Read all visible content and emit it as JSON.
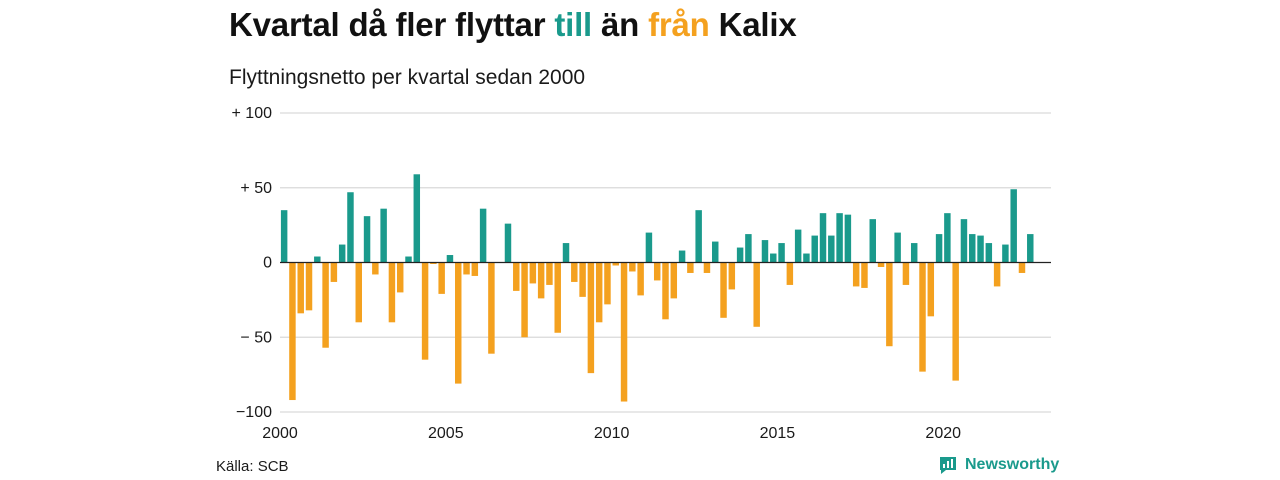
{
  "title": {
    "part1": "Kvartal då fler flyttar ",
    "till": "till",
    "part2": " än ",
    "fran": "från",
    "part3": " Kalix"
  },
  "subtitle": "Flyttningsnetto per kvartal sedan 2000",
  "source": "Källa: SCB",
  "brand": "Newsworthy",
  "icons": {
    "brand": "newsworthy-chart-icon"
  },
  "colors": {
    "positive": "#1a9a8c",
    "negative": "#f4a11f",
    "grid": "#d9d9d9",
    "zero": "#222222"
  },
  "chart_data": {
    "type": "bar",
    "title": "Kvartal då fler flyttar till än från Kalix",
    "subtitle": "Flyttningsnetto per kvartal sedan 2000",
    "ylim": [
      -100,
      100
    ],
    "y_ticks": [
      100,
      50,
      0,
      -50,
      -100
    ],
    "y_tick_labels": [
      "+ 100",
      "+  50",
      "0",
      "− 50",
      "−100"
    ],
    "x_ticks": [
      2000,
      2005,
      2010,
      2015,
      2020
    ],
    "x_tick_labels": [
      "2000",
      "2005",
      "2010",
      "2015",
      "2020"
    ],
    "xlim": [
      2000,
      2023.25
    ],
    "grid": "horizontal",
    "start_year": 2000,
    "quarters_per_year": 4,
    "values": [
      35,
      -92,
      -34,
      -32,
      4,
      -57,
      -13,
      12,
      47,
      -40,
      31,
      -8,
      36,
      -40,
      -20,
      4,
      59,
      -65,
      -1,
      -21,
      5,
      -81,
      -8,
      -9,
      36,
      -61,
      0,
      26,
      -19,
      -50,
      -14,
      -24,
      -15,
      -47,
      13,
      -13,
      -23,
      -74,
      -40,
      -28,
      -2,
      -93,
      -6,
      -22,
      20,
      -12,
      -38,
      -24,
      8,
      -7,
      35,
      -7,
      14,
      -37,
      -18,
      10,
      19,
      -43,
      15,
      6,
      13,
      -15,
      22,
      6,
      18,
      33,
      18,
      33,
      32,
      -16,
      -17,
      29,
      -3,
      -56,
      20,
      -15,
      13,
      -73,
      -36,
      19,
      33,
      -79,
      29,
      19,
      18,
      13,
      -16,
      12,
      49,
      -7,
      19
    ]
  }
}
